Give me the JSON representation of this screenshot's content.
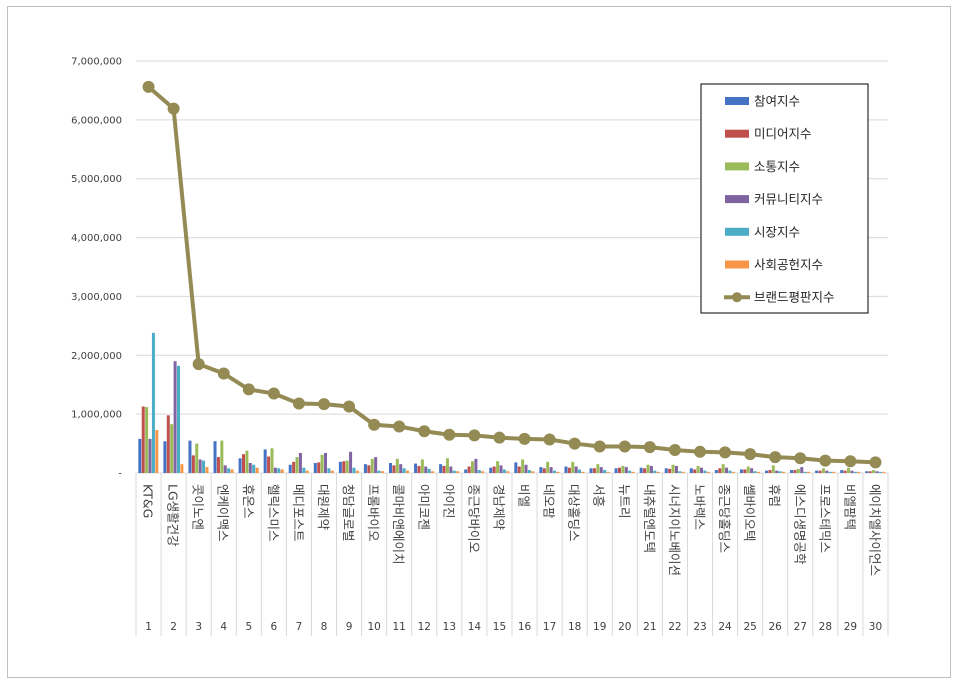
{
  "chart_data": {
    "type": "bar+line",
    "y_ticks": [
      "-",
      "1,000,000",
      "2,000,000",
      "3,000,000",
      "4,000,000",
      "5,000,000",
      "6,000,000",
      "7,000,000"
    ],
    "ylim": [
      0,
      7000000
    ],
    "categories": [
      "KT&G",
      "LG생활건강",
      "콧이노엔",
      "엔케이맥스",
      "휴온스",
      "헬릭스미스",
      "메디포스트",
      "대원제약",
      "청담글로벌",
      "프롬바이오",
      "콜마비앤에이치",
      "아미코젠",
      "아이진",
      "종근당바이오",
      "경남제약",
      "비엘",
      "네오팜",
      "대상홀딩스",
      "서흥",
      "뉴트리",
      "내츄럴엔도텍",
      "시너지이노베이션",
      "노바렉스",
      "종근당홀딩스",
      "쎌바이오텍",
      "휴럼",
      "에스디생명공학",
      "프로스테믹스",
      "비엘팜텍",
      "에이치엘사이언스"
    ],
    "ranks": [
      "1",
      "2",
      "3",
      "4",
      "5",
      "6",
      "7",
      "8",
      "9",
      "10",
      "11",
      "12",
      "13",
      "14",
      "15",
      "16",
      "17",
      "18",
      "19",
      "20",
      "21",
      "22",
      "23",
      "24",
      "25",
      "26",
      "27",
      "28",
      "29",
      "30"
    ],
    "series": [
      {
        "name": "참여지수",
        "color": "#4472c4",
        "values": [
          580000,
          540000,
          550000,
          540000,
          250000,
          400000,
          140000,
          170000,
          190000,
          150000,
          170000,
          160000,
          150000,
          60000,
          90000,
          180000,
          100000,
          110000,
          80000,
          80000,
          90000,
          80000,
          80000,
          50000,
          60000,
          40000,
          50000,
          40000,
          50000,
          30000
        ]
      },
      {
        "name": "미디어지수",
        "color": "#c0504d",
        "values": [
          1130000,
          980000,
          300000,
          270000,
          320000,
          280000,
          190000,
          180000,
          200000,
          130000,
          130000,
          120000,
          120000,
          110000,
          110000,
          110000,
          80000,
          90000,
          80000,
          90000,
          80000,
          70000,
          60000,
          80000,
          60000,
          50000,
          50000,
          40000,
          40000,
          30000
        ]
      },
      {
        "name": "소통지수",
        "color": "#9bbb59",
        "values": [
          1120000,
          830000,
          500000,
          550000,
          380000,
          420000,
          270000,
          310000,
          210000,
          240000,
          240000,
          230000,
          250000,
          200000,
          200000,
          230000,
          190000,
          190000,
          150000,
          120000,
          140000,
          140000,
          120000,
          150000,
          110000,
          130000,
          70000,
          80000,
          90000,
          50000
        ]
      },
      {
        "name": "커뮤니티지수",
        "color": "#8064a2",
        "values": [
          580000,
          1900000,
          230000,
          130000,
          170000,
          90000,
          340000,
          340000,
          360000,
          270000,
          150000,
          110000,
          110000,
          240000,
          130000,
          140000,
          100000,
          110000,
          100000,
          100000,
          120000,
          120000,
          90000,
          90000,
          80000,
          40000,
          100000,
          40000,
          40000,
          30000
        ]
      },
      {
        "name": "시장지수",
        "color": "#4bacc6",
        "values": [
          2380000,
          1820000,
          210000,
          80000,
          140000,
          80000,
          90000,
          80000,
          90000,
          40000,
          80000,
          70000,
          40000,
          50000,
          60000,
          50000,
          40000,
          60000,
          50000,
          40000,
          40000,
          30000,
          40000,
          40000,
          30000,
          30000,
          20000,
          20000,
          20000,
          20000
        ]
      },
      {
        "name": "사회공헌지수",
        "color": "#f79646",
        "values": [
          730000,
          150000,
          100000,
          60000,
          90000,
          60000,
          40000,
          40000,
          40000,
          30000,
          40000,
          30000,
          30000,
          30000,
          30000,
          30000,
          20000,
          20000,
          20000,
          20000,
          20000,
          20000,
          20000,
          20000,
          20000,
          20000,
          20000,
          20000,
          20000,
          20000
        ]
      }
    ],
    "line": {
      "name": "브랜드평판지수",
      "color": "#948a54",
      "values": [
        6560000,
        6190000,
        1850000,
        1690000,
        1420000,
        1350000,
        1180000,
        1170000,
        1130000,
        820000,
        790000,
        710000,
        650000,
        640000,
        600000,
        580000,
        570000,
        500000,
        450000,
        450000,
        440000,
        390000,
        360000,
        350000,
        320000,
        270000,
        250000,
        210000,
        200000,
        180000
      ]
    },
    "legend_position": "top-right",
    "grid": true
  }
}
